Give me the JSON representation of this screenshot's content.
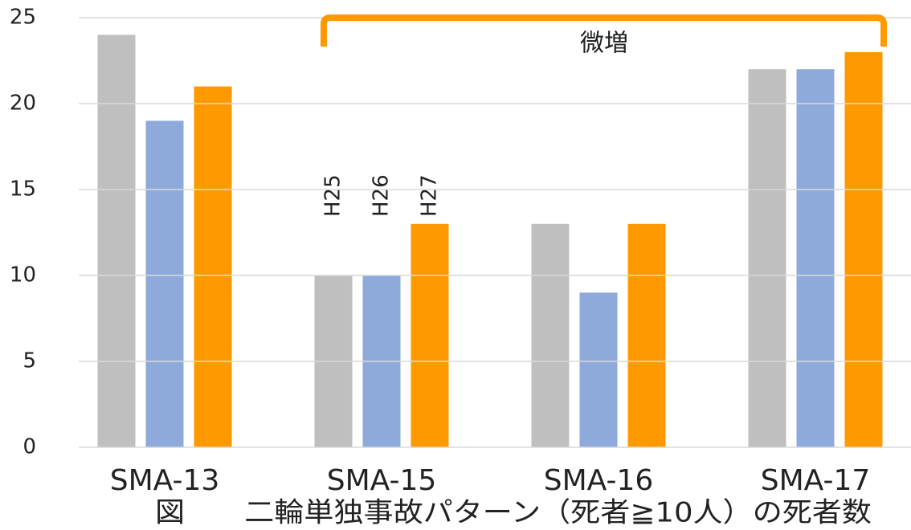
{
  "chart_data": {
    "type": "bar",
    "categories": [
      "SMA-13",
      "SMA-15",
      "SMA-16",
      "SMA-17"
    ],
    "series": [
      {
        "name": "H25",
        "color": "#bfbfbf",
        "values": [
          24,
          10,
          13,
          22
        ]
      },
      {
        "name": "H26",
        "color": "#8eaadb",
        "values": [
          19,
          10,
          9,
          22
        ]
      },
      {
        "name": "H27",
        "color": "#ff9900",
        "values": [
          21,
          13,
          13,
          23
        ]
      }
    ],
    "ylim": [
      0,
      25
    ],
    "yticks": [
      0,
      5,
      10,
      15,
      20,
      25
    ],
    "grid": true,
    "annotation": "微増",
    "caption": "図　　二輪単独事故パターン（死者≧10人）の死者数"
  }
}
